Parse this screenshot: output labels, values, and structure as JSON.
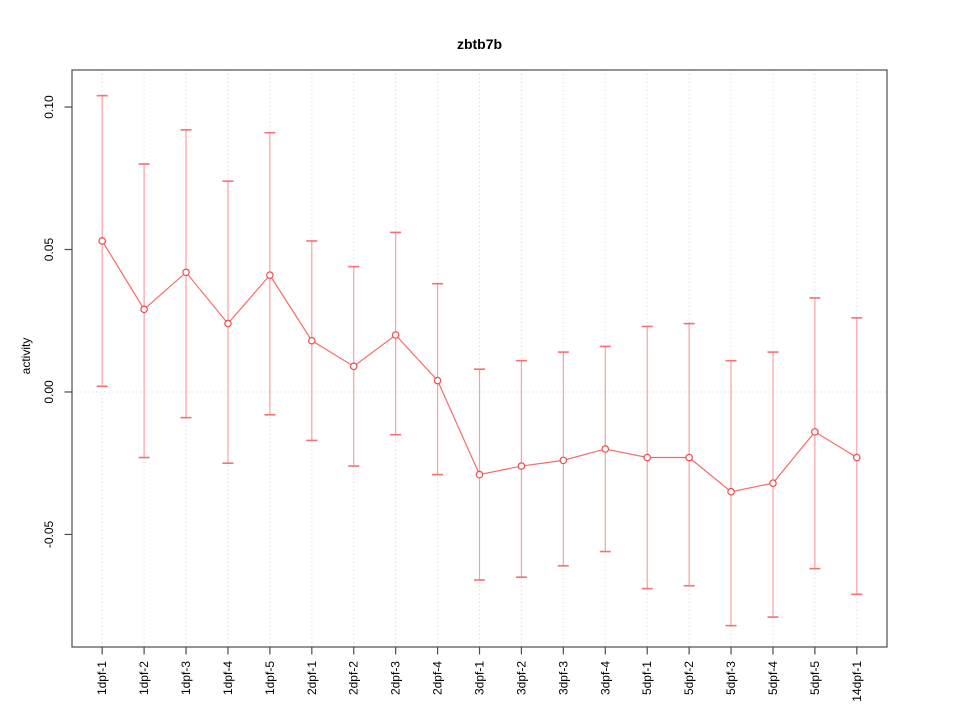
{
  "chart_data": {
    "type": "line",
    "title": "zbtb7b",
    "xlabel": "",
    "ylabel": "activity",
    "legend_position": "none",
    "marker": "open-circle",
    "categories": [
      "1dpf-1",
      "1dpf-2",
      "1dpf-3",
      "1dpf-4",
      "1dpf-5",
      "2dpf-1",
      "2dpf-2",
      "2dpf-3",
      "2dpf-4",
      "3dpf-1",
      "3dpf-2",
      "3dpf-3",
      "3dpf-4",
      "5dpf-1",
      "5dpf-2",
      "5dpf-3",
      "5dpf-4",
      "5dpf-5",
      "14dpf-1"
    ],
    "series": [
      {
        "name": "activity",
        "values": [
          0.053,
          0.029,
          0.042,
          0.024,
          0.041,
          0.018,
          0.009,
          0.02,
          0.004,
          -0.029,
          -0.026,
          -0.024,
          -0.02,
          -0.023,
          -0.023,
          -0.035,
          -0.032,
          -0.014,
          -0.023
        ],
        "error_upper": [
          0.104,
          0.08,
          0.092,
          0.074,
          0.091,
          0.053,
          0.044,
          0.056,
          0.038,
          0.008,
          0.011,
          0.014,
          0.016,
          0.023,
          0.024,
          0.011,
          0.014,
          0.033,
          0.026
        ],
        "error_lower": [
          0.002,
          -0.023,
          -0.009,
          -0.025,
          -0.008,
          -0.017,
          -0.026,
          -0.015,
          -0.029,
          -0.066,
          -0.065,
          -0.061,
          -0.056,
          -0.069,
          -0.068,
          -0.082,
          -0.079,
          -0.062,
          -0.071
        ]
      }
    ],
    "ylim": [
      -0.0895,
      0.113
    ],
    "yticks": {
      "values": [
        -0.05,
        0,
        0.05,
        0.1
      ],
      "labels": [
        "-0.05",
        "0.00",
        "0.05",
        "0.10"
      ]
    },
    "grid": {
      "vertical_dotted_per_category": true,
      "horizontal_dotted_at_zero": true
    },
    "colors": {
      "line": "#f76a6a",
      "marker_stroke": "#ef4b4b",
      "marker_fill": "#ffffff",
      "error_bar": "#f9a1a1",
      "error_cap": "#f47272",
      "grid": "#d9d9d9",
      "axis": "#4d4d4d",
      "text": "#000000"
    }
  }
}
